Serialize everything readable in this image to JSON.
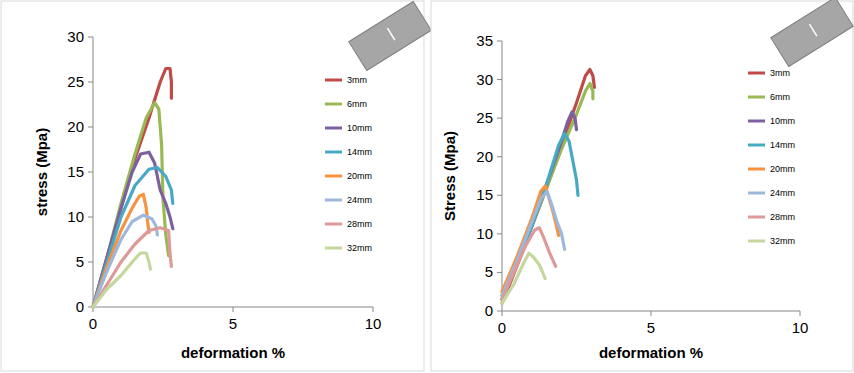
{
  "chart_data": [
    {
      "type": "line",
      "y_label": "stress (Mpa)",
      "x_label": "deformation %",
      "xlim": [
        0,
        10
      ],
      "xticks": [
        0,
        5,
        10
      ],
      "ylim": [
        0,
        30
      ],
      "yticks": [
        0,
        5,
        10,
        15,
        20,
        25,
        30
      ],
      "grid": false,
      "legend": "right",
      "series": [
        {
          "name": "3mm",
          "color": "#be4b48",
          "x": [
            0,
            0.5,
            1,
            1.5,
            2,
            2.4,
            2.6,
            2.75,
            2.8,
            2.8
          ],
          "values": [
            0,
            5.5,
            11,
            16.5,
            21,
            25,
            26.5,
            26.5,
            25,
            23.2
          ]
        },
        {
          "name": "6mm",
          "color": "#98b954",
          "x": [
            0,
            0.5,
            1,
            1.5,
            1.9,
            2.2,
            2.35,
            2.45,
            2.5,
            2.6,
            2.7
          ],
          "values": [
            0,
            5.5,
            11.5,
            17,
            21,
            22.7,
            22,
            18,
            12,
            8,
            5.7
          ]
        },
        {
          "name": "10mm",
          "color": "#7d60a0",
          "x": [
            0,
            0.5,
            1,
            1.4,
            1.7,
            2,
            2.2,
            2.4,
            2.6,
            2.75,
            2.85
          ],
          "values": [
            0,
            5.5,
            11,
            15,
            17,
            17.2,
            16,
            13,
            11.5,
            10,
            8.7
          ]
        },
        {
          "name": "14mm",
          "color": "#46aac5",
          "x": [
            0,
            0.5,
            1,
            1.5,
            2,
            2.3,
            2.6,
            2.8,
            2.85
          ],
          "values": [
            0,
            5,
            10,
            13.5,
            15.3,
            15.5,
            14.5,
            13,
            11.5
          ]
        },
        {
          "name": "20mm",
          "color": "#f69240",
          "x": [
            0,
            0.5,
            1,
            1.4,
            1.65,
            1.8,
            1.9,
            1.95,
            2
          ],
          "values": [
            0,
            4.5,
            8.5,
            11,
            12.3,
            12.5,
            11,
            9.5,
            8.3
          ]
        },
        {
          "name": "24mm",
          "color": "#9cb8dc",
          "x": [
            0,
            0.5,
            1,
            1.4,
            1.8,
            2.1,
            2.25,
            2.3
          ],
          "values": [
            0,
            4,
            7.5,
            9.5,
            10.2,
            9.8,
            9,
            8
          ]
        },
        {
          "name": "28mm",
          "color": "#dd9a98",
          "x": [
            0,
            0.5,
            1,
            1.5,
            2,
            2.4,
            2.7,
            2.75,
            2.8
          ],
          "values": [
            0,
            2.5,
            5,
            7,
            8.5,
            8.8,
            8.5,
            6,
            4.5
          ]
        },
        {
          "name": "32mm",
          "color": "#c4d89d",
          "x": [
            0,
            0.5,
            1,
            1.4,
            1.7,
            1.9,
            2,
            2.05
          ],
          "values": [
            0,
            2,
            3.5,
            5,
            6,
            6,
            5,
            4.2
          ]
        }
      ]
    },
    {
      "type": "line",
      "y_label": "Stress (Mpa)",
      "x_label": "deformation %",
      "xlim": [
        0,
        10
      ],
      "xticks": [
        0,
        5,
        10
      ],
      "ylim": [
        0,
        35
      ],
      "yticks": [
        0,
        5,
        10,
        15,
        20,
        25,
        30,
        35
      ],
      "grid": false,
      "legend": "right",
      "series": [
        {
          "name": "3mm",
          "color": "#be4b48",
          "x": [
            0,
            0.5,
            1,
            1.5,
            2,
            2.5,
            2.8,
            2.95,
            3.05,
            3.1
          ],
          "values": [
            1,
            5.8,
            11,
            16,
            21.5,
            27,
            30.5,
            31.3,
            30.5,
            29
          ]
        },
        {
          "name": "6mm",
          "color": "#98b954",
          "x": [
            0,
            0.5,
            1,
            1.5,
            2,
            2.5,
            2.8,
            2.95,
            3.05,
            3.05
          ],
          "values": [
            2,
            6.5,
            11,
            16,
            21,
            25.5,
            28.5,
            29.5,
            28.5,
            27.5
          ]
        },
        {
          "name": "10mm",
          "color": "#7d60a0",
          "x": [
            0,
            0.5,
            1,
            1.5,
            2,
            2.2,
            2.35,
            2.45,
            2.5
          ],
          "values": [
            1.5,
            6,
            11,
            16.5,
            22,
            24.5,
            25.8,
            25,
            23.5
          ]
        },
        {
          "name": "14mm",
          "color": "#46aac5",
          "x": [
            0,
            0.5,
            1,
            1.5,
            1.9,
            2.1,
            2.25,
            2.4,
            2.5,
            2.55
          ],
          "values": [
            1.5,
            6,
            11,
            16.5,
            21.5,
            23,
            22,
            19,
            17,
            15
          ]
        },
        {
          "name": "20mm",
          "color": "#f69240",
          "x": [
            0,
            0.5,
            1,
            1.3,
            1.45,
            1.55,
            1.7,
            1.8,
            1.9
          ],
          "values": [
            2.5,
            7,
            12,
            15.5,
            16.2,
            15,
            13,
            11.5,
            9.8
          ]
        },
        {
          "name": "24mm",
          "color": "#9cb8dc",
          "x": [
            0,
            0.5,
            1,
            1.3,
            1.5,
            1.65,
            1.85,
            2,
            2.1
          ],
          "values": [
            2,
            6.5,
            11.5,
            14.5,
            15.5,
            14,
            11.5,
            10,
            8
          ]
        },
        {
          "name": "28mm",
          "color": "#dd9a98",
          "x": [
            0,
            0.4,
            0.8,
            1.1,
            1.25,
            1.4,
            1.6,
            1.8
          ],
          "values": [
            1.5,
            5,
            8.5,
            10.5,
            10.8,
            9.5,
            7.5,
            5.8
          ]
        },
        {
          "name": "32mm",
          "color": "#c4d89d",
          "x": [
            0,
            0.4,
            0.7,
            0.9,
            1.05,
            1.25,
            1.45
          ],
          "values": [
            1,
            3.5,
            6,
            7.5,
            7,
            6,
            4.2
          ]
        }
      ]
    }
  ]
}
